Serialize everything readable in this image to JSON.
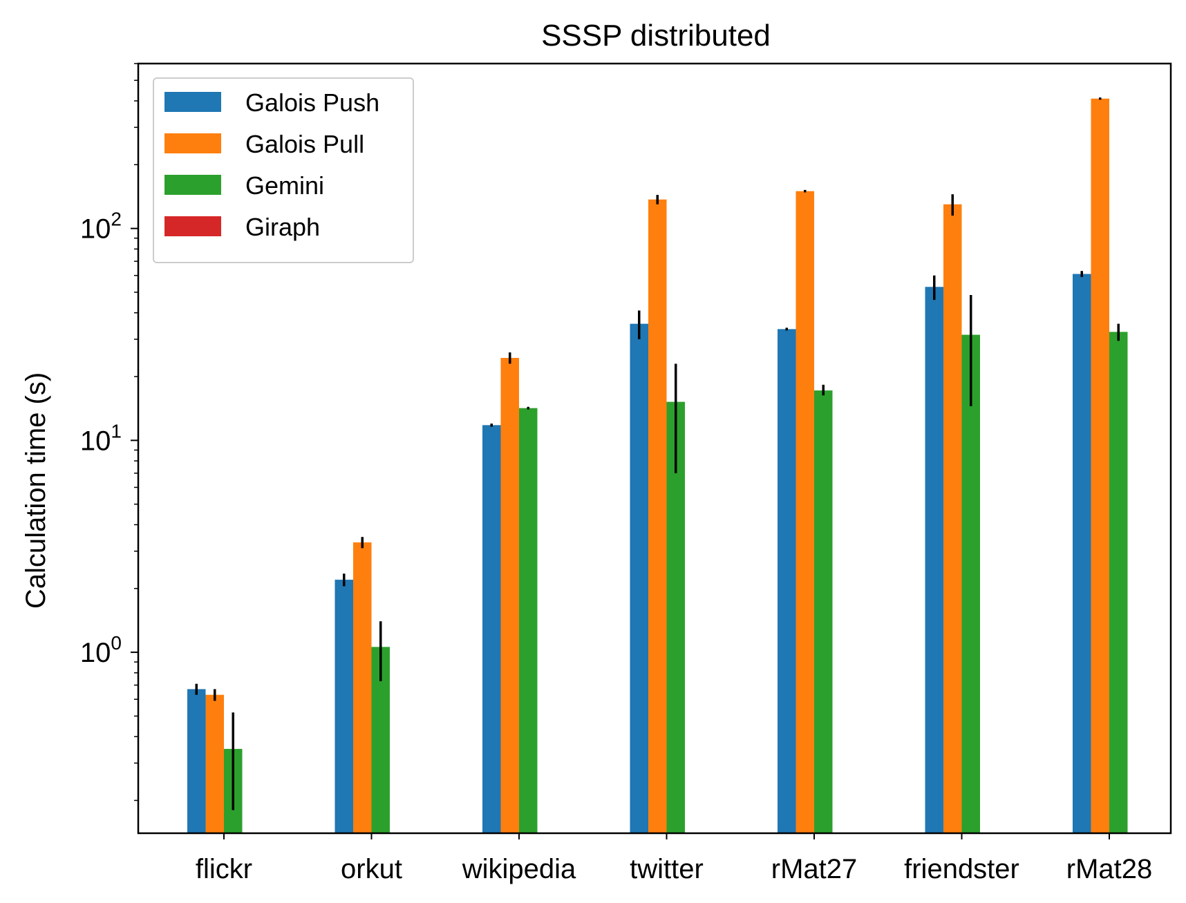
{
  "chart_data": {
    "type": "bar",
    "title": "SSSP distributed",
    "xlabel": "",
    "ylabel": "Calculation time (s)",
    "yscale": "log",
    "ylim": [
      0.14,
      600
    ],
    "yticks": [
      {
        "value": 1,
        "base": "10",
        "exp": "0"
      },
      {
        "value": 10,
        "base": "10",
        "exp": "1"
      },
      {
        "value": 100,
        "base": "10",
        "exp": "2"
      }
    ],
    "categories": [
      "flickr",
      "orkut",
      "wikipedia",
      "twitter",
      "rMat27",
      "friendster",
      "rMat28"
    ],
    "series": [
      {
        "name": "Galois Push",
        "color": "#1f77b4",
        "values": [
          0.67,
          2.2,
          11.8,
          35.5,
          33.5,
          53,
          61
        ],
        "err_low": [
          0.63,
          2.05,
          11.6,
          30,
          33,
          46,
          59
        ],
        "err_high": [
          0.71,
          2.35,
          12.0,
          41,
          34,
          60,
          63
        ]
      },
      {
        "name": "Galois Pull",
        "color": "#ff7f0e",
        "values": [
          0.63,
          3.3,
          24.5,
          137,
          150,
          130,
          410
        ],
        "err_low": [
          0.59,
          3.1,
          23,
          130,
          148,
          115,
          405
        ],
        "err_high": [
          0.67,
          3.5,
          26,
          144,
          152,
          145,
          415
        ]
      },
      {
        "name": "Gemini",
        "color": "#2ca02c",
        "values": [
          0.35,
          1.06,
          14.2,
          15.2,
          17.2,
          31.5,
          32.5
        ],
        "err_low": [
          0.18,
          0.73,
          14.0,
          7,
          16.3,
          14.5,
          29.5
        ],
        "err_high": [
          0.52,
          1.4,
          14.4,
          23,
          18.3,
          48.5,
          35.5
        ]
      },
      {
        "name": "Giraph",
        "color": "#d62728",
        "values": [
          null,
          null,
          null,
          null,
          null,
          null,
          null
        ],
        "err_low": [
          null,
          null,
          null,
          null,
          null,
          null,
          null
        ],
        "err_high": [
          null,
          null,
          null,
          null,
          null,
          null,
          null
        ]
      }
    ],
    "legend": "top-left",
    "grid": false
  }
}
